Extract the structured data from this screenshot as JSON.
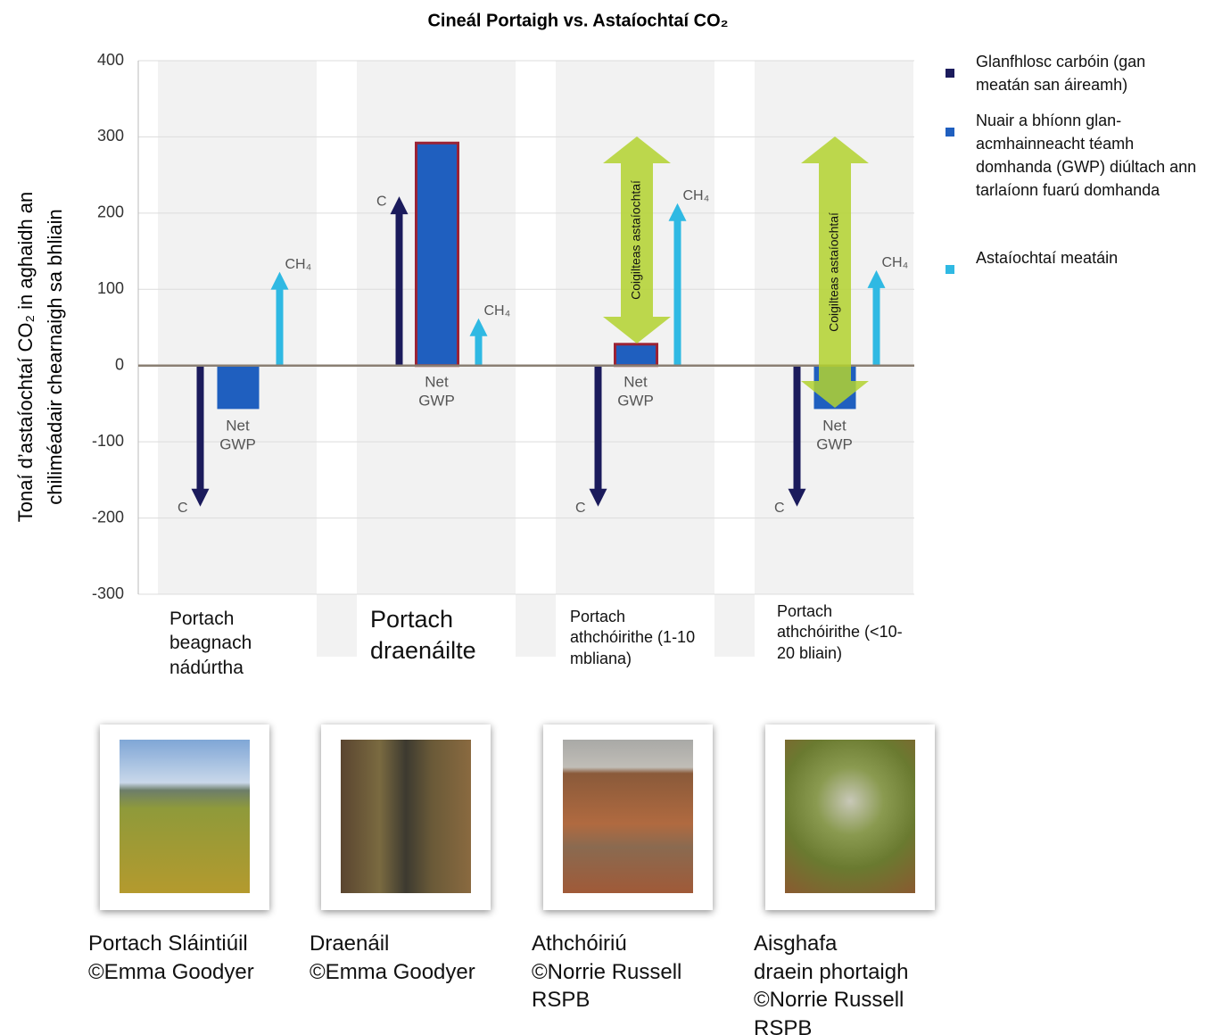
{
  "chart_data": {
    "type": "bar",
    "title": "Cineál Portaigh vs.  Astaíochtaí  CO₂",
    "ylabel": [
      "Tonaí d’astaíochtaí CO₂ in aghaidh an",
      "chiliméadair chearnaigh sa bhliain"
    ],
    "categories": [
      "Portach beagnach nádúrtha",
      "Portach draenáilte",
      "Portach athchóirithe (1-10 mbliana)",
      "Portach athchóirithe (<10-20 bliain)"
    ],
    "series": [
      {
        "name": "Glanfhlosc carbóin (gan meatán san áireamh)",
        "color": "#1b1b5c",
        "mark": "arrow",
        "label": "C",
        "values": [
          -185,
          222,
          -185,
          -185
        ]
      },
      {
        "name": "Nuair a bhíonn glan-acmhainneacht téamh domhanda (GWP) diúltach ann tarlaíonn fuarú domhanda",
        "color": "#1f5fbf",
        "mark": "bar",
        "label": "Net GWP",
        "edgecolors": [
          null,
          "#9b2335",
          "#9b2335",
          null
        ],
        "values": [
          -57,
          292,
          28,
          -57
        ]
      },
      {
        "name": "Astaíochtaí meatáin",
        "color": "#2fb9e3",
        "mark": "arrow",
        "label": "CH₄",
        "values": [
          123,
          62,
          213,
          125
        ]
      }
    ],
    "savings_label": "Coigilteas astaíochtaí",
    "ylim": [
      -300,
      400
    ],
    "yticks": [
      -300,
      -200,
      -100,
      0,
      100,
      200,
      300,
      400
    ],
    "grid": true
  },
  "photos": [
    {
      "caption": [
        "Portach Sláintiúil",
        "©Emma Goodyer"
      ]
    },
    {
      "caption": [
        "Draenáil",
        "©Emma Goodyer"
      ]
    },
    {
      "caption": [
        "Athchóiriú",
        "©Norrie Russell",
        "RSPB"
      ]
    },
    {
      "caption": [
        "Aisghafa",
        "draein phortaigh",
        "©Norrie Russell",
        "RSPB"
      ]
    }
  ]
}
